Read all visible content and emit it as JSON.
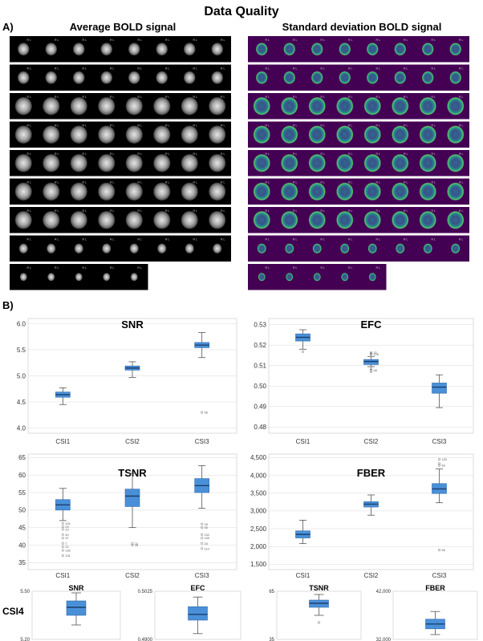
{
  "figure": {
    "title": "Data Quality",
    "panel_a_label": "A)",
    "panel_b_label": "B)",
    "avg_title": "Average BOLD signal",
    "std_title": "Standard deviation BOLD signal",
    "csi4_label": "CSI4",
    "slice_orientation_label": "R L",
    "colors": {
      "box": "#4a90d9",
      "median": "#1a3f6b",
      "grid": "#d9d9d9",
      "viridis_bg": "#440154"
    }
  },
  "chart_data": [
    {
      "type": "box",
      "title": "SNR",
      "categories": [
        "CSI1",
        "CSI2",
        "CSI3"
      ],
      "ylim": [
        3.9,
        6.1
      ],
      "yticks": [
        4.0,
        4.5,
        5.0,
        5.5,
        6.0
      ],
      "ytick_labels": [
        "4.0",
        "4.5",
        "5.0",
        "5.5",
        "6.0"
      ],
      "boxes": [
        {
          "whislo": 4.45,
          "q1": 4.59,
          "med": 4.64,
          "q3": 4.69,
          "whishi": 4.77
        },
        {
          "whislo": 4.97,
          "q1": 5.11,
          "med": 5.15,
          "q3": 5.19,
          "whishi": 5.27
        },
        {
          "whislo": 5.35,
          "q1": 5.54,
          "med": 5.59,
          "q3": 5.64,
          "whishi": 5.83
        }
      ],
      "outliers": [
        {
          "cat": 2,
          "y": 4.3,
          "label": "55"
        }
      ]
    },
    {
      "type": "box",
      "title": "EFC",
      "categories": [
        "CSI1",
        "CSI2",
        "CSI3"
      ],
      "ylim": [
        0.477,
        0.533
      ],
      "yticks": [
        0.48,
        0.49,
        0.5,
        0.51,
        0.52,
        0.53
      ],
      "ytick_labels": [
        "0.48",
        "0.49",
        "0.50",
        "0.51",
        "0.52",
        "0.53"
      ],
      "boxes": [
        {
          "whislo": 0.518,
          "q1": 0.522,
          "med": 0.5238,
          "q3": 0.5255,
          "whishi": 0.5275
        },
        {
          "whislo": 0.5095,
          "q1": 0.5105,
          "med": 0.512,
          "q3": 0.513,
          "whishi": 0.5145
        },
        {
          "whislo": 0.4895,
          "q1": 0.4965,
          "med": 0.4995,
          "q3": 0.5015,
          "whishi": 0.5055
        }
      ],
      "outliers": [
        {
          "cat": 0,
          "y": 0.5168,
          "label": ""
        },
        {
          "cat": 1,
          "y": 0.5163,
          "label": "32"
        },
        {
          "cat": 1,
          "y": 0.5158,
          "label": ""
        },
        {
          "cat": 1,
          "y": 0.5155,
          "label": "128"
        },
        {
          "cat": 1,
          "y": 0.5085,
          "label": ""
        },
        {
          "cat": 1,
          "y": 0.5078,
          "label": "48"
        },
        {
          "cat": 1,
          "y": 0.507,
          "label": ""
        }
      ]
    },
    {
      "type": "box",
      "title": "TSNR",
      "categories": [
        "CSI1",
        "CSI2",
        "CSI3"
      ],
      "ylim": [
        33,
        66
      ],
      "yticks": [
        35,
        40,
        45,
        50,
        55,
        60,
        65
      ],
      "ytick_labels": [
        "35",
        "40",
        "45",
        "50",
        "55",
        "60",
        "65"
      ],
      "boxes": [
        {
          "whislo": 47,
          "q1": 50,
          "med": 51.5,
          "q3": 53,
          "whishi": 56.2
        },
        {
          "whislo": 45,
          "q1": 51,
          "med": 54,
          "q3": 56,
          "whishi": 60.5
        },
        {
          "whislo": 50.5,
          "q1": 55,
          "med": 57,
          "q3": 59,
          "whishi": 62.7
        }
      ],
      "outliers": [
        {
          "cat": 0,
          "y": 46.2,
          "label": "104"
        },
        {
          "cat": 0,
          "y": 45.3,
          "label": "29"
        },
        {
          "cat": 0,
          "y": 44.5,
          "label": "29"
        },
        {
          "cat": 0,
          "y": 43.0,
          "label": "40"
        },
        {
          "cat": 0,
          "y": 42.0,
          "label": "37"
        },
        {
          "cat": 0,
          "y": 40.5,
          "label": "7"
        },
        {
          "cat": 0,
          "y": 39.5,
          "label": "22"
        },
        {
          "cat": 0,
          "y": 38.5,
          "label": "133"
        },
        {
          "cat": 0,
          "y": 37.0,
          "label": "131"
        },
        {
          "cat": 1,
          "y": 40.5,
          "label": "11"
        },
        {
          "cat": 1,
          "y": 40.0,
          "label": "15"
        },
        {
          "cat": 2,
          "y": 46.0,
          "label": "29"
        },
        {
          "cat": 2,
          "y": 45.0,
          "label": "30"
        },
        {
          "cat": 2,
          "y": 43.0,
          "label": "102"
        },
        {
          "cat": 2,
          "y": 42.0,
          "label": "100"
        },
        {
          "cat": 2,
          "y": 40.5,
          "label": "24"
        },
        {
          "cat": 2,
          "y": 39.0,
          "label": "110"
        }
      ]
    },
    {
      "type": "box",
      "title": "FBER",
      "categories": [
        "CSI1",
        "CSI2",
        "CSI3"
      ],
      "ylim": [
        1350,
        4600
      ],
      "yticks": [
        1500,
        2000,
        2500,
        3000,
        3500,
        4000,
        4500
      ],
      "ytick_labels": [
        "1,500",
        "2,000",
        "2,500",
        "3,000",
        "3,500",
        "4,000",
        "4,500"
      ],
      "boxes": [
        {
          "whislo": 2080,
          "q1": 2240,
          "med": 2340,
          "q3": 2440,
          "whishi": 2740
        },
        {
          "whislo": 2880,
          "q1": 3110,
          "med": 3190,
          "q3": 3260,
          "whishi": 3450
        },
        {
          "whislo": 3230,
          "q1": 3490,
          "med": 3620,
          "q3": 3770,
          "whishi": 4180
        }
      ],
      "outliers": [
        {
          "cat": 2,
          "y": 4450,
          "label": "120"
        },
        {
          "cat": 2,
          "y": 4330,
          "label": ""
        },
        {
          "cat": 2,
          "y": 4280,
          "label": "60"
        },
        {
          "cat": 2,
          "y": 1900,
          "label": "55"
        }
      ]
    },
    {
      "type": "box",
      "title": "SNR",
      "categories": [
        ""
      ],
      "ylim": [
        5.2,
        5.5
      ],
      "yticks": [
        5.2,
        5.5
      ],
      "ytick_labels": [
        "5.20",
        "5.50"
      ],
      "boxes": [
        {
          "whislo": 5.29,
          "q1": 5.35,
          "med": 5.4,
          "q3": 5.44,
          "whishi": 5.49
        }
      ],
      "outliers": []
    },
    {
      "type": "box",
      "title": "EFC",
      "categories": [
        ""
      ],
      "ylim": [
        0.49,
        0.5025
      ],
      "yticks": [
        0.49,
        0.5025
      ],
      "ytick_labels": [
        "0.4900",
        "0.5025"
      ],
      "boxes": [
        {
          "whislo": 0.4915,
          "q1": 0.495,
          "med": 0.4965,
          "q3": 0.4985,
          "whishi": 0.501
        }
      ],
      "outliers": []
    },
    {
      "type": "box",
      "title": "TSNR",
      "categories": [
        ""
      ],
      "ylim": [
        35,
        65
      ],
      "yticks": [
        35,
        65
      ],
      "ytick_labels": [
        "35",
        "65"
      ],
      "boxes": [
        {
          "whislo": 50,
          "q1": 55,
          "med": 57.5,
          "q3": 59.5,
          "whishi": 63
        }
      ],
      "outliers": [
        {
          "cat": 0,
          "y": 45.5,
          "label": ""
        }
      ]
    },
    {
      "type": "box",
      "title": "FBER",
      "categories": [
        ""
      ],
      "ylim": [
        32000,
        42000
      ],
      "yticks": [
        32000,
        42000
      ],
      "ytick_labels": [
        "32,000",
        "42,000"
      ],
      "boxes": [
        {
          "whislo": 33000,
          "q1": 34200,
          "med": 35200,
          "q3": 36200,
          "whishi": 37800
        }
      ],
      "outliers": []
    }
  ]
}
